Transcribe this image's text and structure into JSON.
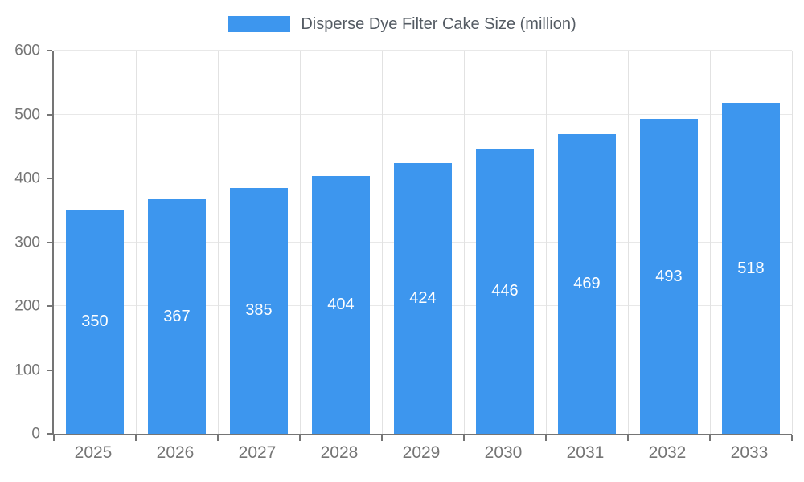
{
  "legend": {
    "label": "Disperse Dye Filter Cake Size (million)"
  },
  "colors": {
    "bar": "#3D96EE",
    "axis": "#757575",
    "tick_text": "#757575",
    "legend_text": "#545B63",
    "gridline": "#E6E6E6",
    "value_label": "#FFFFFF",
    "background": "#FFFFFF"
  },
  "chart_data": {
    "type": "bar",
    "title": "Disperse Dye Filter Cake Size (million)",
    "categories": [
      "2025",
      "2026",
      "2027",
      "2028",
      "2029",
      "2030",
      "2031",
      "2032",
      "2033"
    ],
    "values": [
      350,
      367,
      385,
      404,
      424,
      446,
      469,
      493,
      518
    ],
    "xlabel": "",
    "ylabel": "",
    "ylim": [
      0,
      600
    ],
    "yticks": [
      0,
      100,
      200,
      300,
      400,
      500,
      600
    ],
    "grid": true,
    "legend_position": "top",
    "value_labels": "inside-center-white"
  }
}
